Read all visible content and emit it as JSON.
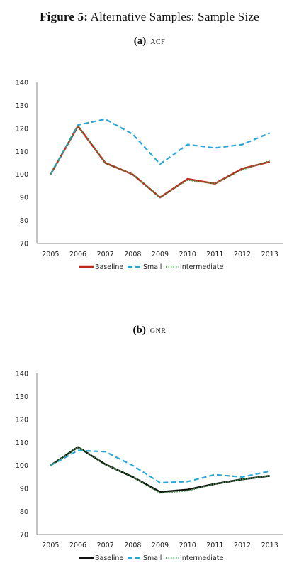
{
  "figure": {
    "label": "Figure 5:",
    "title": "Alternative Samples: Sample Size"
  },
  "chart_data": [
    {
      "type": "line",
      "panel_label": "(a)",
      "panel_title": "ACF",
      "categories": [
        "2005",
        "2006",
        "2007",
        "2008",
        "2009",
        "2010",
        "2011",
        "2012",
        "2013"
      ],
      "ylim": [
        70,
        140
      ],
      "yticks": [
        70,
        80,
        90,
        100,
        110,
        120,
        130,
        140
      ],
      "grid": false,
      "legend_position": "bottom",
      "series": [
        {
          "name": "Baseline",
          "color": "#c0281c",
          "style": "solid",
          "values": [
            100,
            121,
            105,
            100,
            90,
            98,
            96,
            102.5,
            105.5
          ]
        },
        {
          "name": "Small",
          "color": "#2aa7d8",
          "style": "dashed",
          "values": [
            100,
            121.5,
            124,
            117.5,
            104.5,
            113,
            111.5,
            113,
            118
          ]
        },
        {
          "name": "Intermediate",
          "color": "#3a9a45",
          "style": "dotted",
          "values": [
            100,
            121,
            105,
            100,
            90,
            97.5,
            96,
            102,
            106
          ]
        }
      ]
    },
    {
      "type": "line",
      "panel_label": "(b)",
      "panel_title": "GNR",
      "categories": [
        "2005",
        "2006",
        "2007",
        "2008",
        "2009",
        "2010",
        "2011",
        "2012",
        "2013"
      ],
      "ylim": [
        70,
        140
      ],
      "yticks": [
        70,
        80,
        90,
        100,
        110,
        120,
        130,
        140
      ],
      "grid": false,
      "legend_position": "bottom",
      "series": [
        {
          "name": "Baseline",
          "color": "#111111",
          "style": "solid",
          "values": [
            100,
            108,
            100.5,
            95,
            88.5,
            89.5,
            92,
            94,
            95.5
          ]
        },
        {
          "name": "Small",
          "color": "#2aa7d8",
          "style": "dashed",
          "values": [
            100,
            106.5,
            106,
            100,
            92.5,
            93,
            96,
            95,
            97.5
          ]
        },
        {
          "name": "Intermediate",
          "color": "#3a9a45",
          "style": "dotted",
          "values": [
            100,
            108,
            100.5,
            95,
            88,
            89,
            92,
            94,
            95.5
          ]
        }
      ]
    }
  ]
}
